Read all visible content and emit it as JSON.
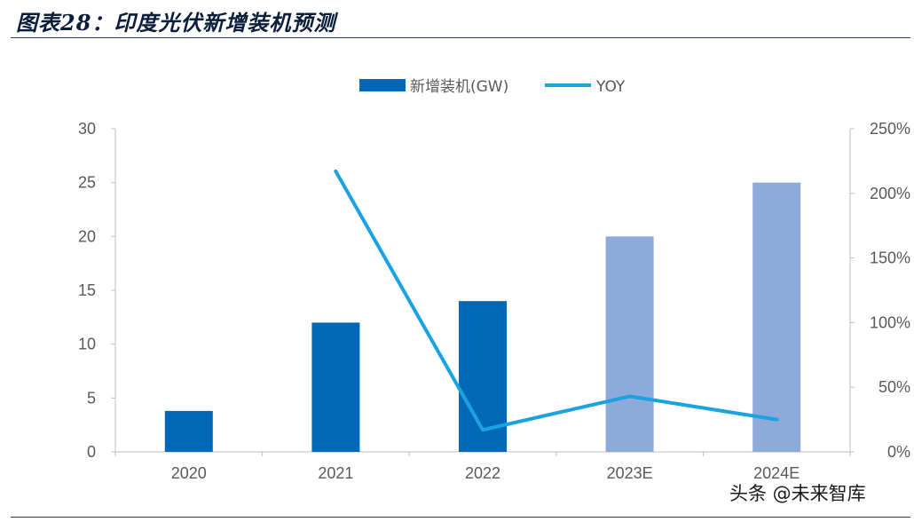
{
  "header": {
    "title": "图表28：印度光伏新增装机预测"
  },
  "watermark": "头条 @未来智库",
  "colors": {
    "bar_actual": "#0068b7",
    "bar_forecast": "#8eaadb",
    "line": "#1aa3e0",
    "axis": "#bfbfbf",
    "title": "#0b1e3c"
  },
  "chart_data": {
    "type": "bar",
    "categories": [
      "2020",
      "2021",
      "2022",
      "2023E",
      "2024E"
    ],
    "series": [
      {
        "name": "新增装机(GW)",
        "type": "bar",
        "axis": "left",
        "values": [
          3.8,
          12,
          14,
          20,
          25
        ],
        "forecast": [
          false,
          false,
          false,
          true,
          true
        ]
      },
      {
        "name": "YOY",
        "type": "line",
        "axis": "right",
        "values": [
          null,
          2.17,
          0.17,
          0.43,
          0.25
        ]
      }
    ],
    "y_left": {
      "ylim": [
        0,
        30
      ],
      "ticks": [
        "0",
        "5",
        "10",
        "15",
        "20",
        "25",
        "30"
      ]
    },
    "y_right": {
      "ylim": [
        0,
        2.5
      ],
      "ticks": [
        "0%",
        "50%",
        "100%",
        "150%",
        "200%",
        "250%"
      ]
    },
    "legend_position": "top-center",
    "grid": false
  }
}
